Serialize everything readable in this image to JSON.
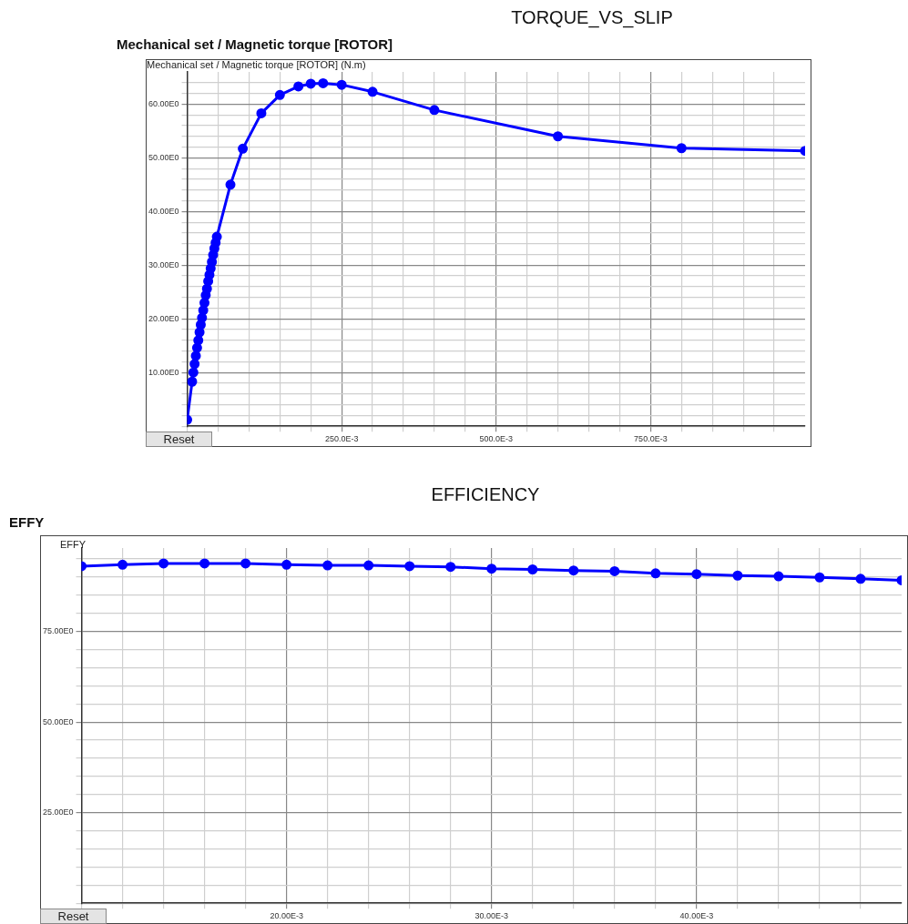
{
  "chart_data": [
    {
      "type": "line",
      "title": "TORQUE_VS_SLIP",
      "ylabel": "Mechanical set / Magnetic torque [ROTOR]",
      "annotations": [
        "Mechanical set / Magnetic torque [ROTOR] (N.m)",
        "Reset"
      ],
      "x": [
        0,
        0.008,
        0.01,
        0.012,
        0.014,
        0.016,
        0.018,
        0.02,
        0.022,
        0.024,
        0.026,
        0.028,
        0.03,
        0.032,
        0.034,
        0.036,
        0.038,
        0.04,
        0.042,
        0.044,
        0.046,
        0.048,
        0.07,
        0.09,
        0.12,
        0.15,
        0.18,
        0.2,
        0.22,
        0.25,
        0.3,
        0.4,
        0.6,
        0.8,
        1.0
      ],
      "series": [
        {
          "color": "#0000ff",
          "values": [
            1.2,
            8.3,
            10,
            11.6,
            13.1,
            14.6,
            16,
            17.5,
            18.9,
            20.2,
            21.6,
            23,
            24.4,
            25.6,
            27,
            28.2,
            29.4,
            30.6,
            31.9,
            33.1,
            34.2,
            35.3,
            45,
            51.7,
            58.3,
            61.7,
            63.3,
            63.8,
            63.9,
            63.6,
            62.3,
            58.9,
            54,
            51.8,
            51.3
          ]
        }
      ],
      "xlim": [
        0,
        1.0
      ],
      "xticks": [
        {
          "value": 0,
          "label": null
        },
        {
          "value": 0.05,
          "label": null
        },
        {
          "value": 0.1,
          "label": null
        },
        {
          "value": 0.15,
          "label": null
        },
        {
          "value": 0.2,
          "label": null
        },
        {
          "value": 0.25,
          "label": "250.0E-3"
        },
        {
          "value": 0.3,
          "label": null
        },
        {
          "value": 0.35,
          "label": null
        },
        {
          "value": 0.4,
          "label": null
        },
        {
          "value": 0.45,
          "label": null
        },
        {
          "value": 0.5,
          "label": "500.0E-3"
        },
        {
          "value": 0.55,
          "label": null
        },
        {
          "value": 0.6,
          "label": null
        },
        {
          "value": 0.65,
          "label": null
        },
        {
          "value": 0.7,
          "label": null
        },
        {
          "value": 0.75,
          "label": "750.0E-3"
        },
        {
          "value": 0.8,
          "label": null
        },
        {
          "value": 0.85,
          "label": null
        },
        {
          "value": 0.9,
          "label": null
        },
        {
          "value": 0.95,
          "label": null
        }
      ],
      "ylim": [
        0,
        66
      ],
      "yticks": [
        {
          "value": 0,
          "label": null
        },
        {
          "value": 2,
          "label": null
        },
        {
          "value": 4,
          "label": null
        },
        {
          "value": 6,
          "label": null
        },
        {
          "value": 8,
          "label": null
        },
        {
          "value": 10,
          "label": "10.00E0"
        },
        {
          "value": 12,
          "label": null
        },
        {
          "value": 14,
          "label": null
        },
        {
          "value": 16,
          "label": null
        },
        {
          "value": 18,
          "label": null
        },
        {
          "value": 20,
          "label": "20.00E0"
        },
        {
          "value": 22,
          "label": null
        },
        {
          "value": 24,
          "label": null
        },
        {
          "value": 26,
          "label": null
        },
        {
          "value": 28,
          "label": null
        },
        {
          "value": 30,
          "label": "30.00E0"
        },
        {
          "value": 32,
          "label": null
        },
        {
          "value": 34,
          "label": null
        },
        {
          "value": 36,
          "label": null
        },
        {
          "value": 38,
          "label": null
        },
        {
          "value": 40,
          "label": "40.00E0"
        },
        {
          "value": 42,
          "label": null
        },
        {
          "value": 44,
          "label": null
        },
        {
          "value": 46,
          "label": null
        },
        {
          "value": 48,
          "label": null
        },
        {
          "value": 50,
          "label": "50.00E0"
        },
        {
          "value": 52,
          "label": null
        },
        {
          "value": 54,
          "label": null
        },
        {
          "value": 56,
          "label": null
        },
        {
          "value": 58,
          "label": null
        },
        {
          "value": 60,
          "label": "60.00E0"
        },
        {
          "value": 62,
          "label": null
        },
        {
          "value": 64,
          "label": null
        }
      ],
      "grid": true,
      "marker": "circle",
      "line_style": "solid",
      "legend": false
    },
    {
      "type": "line",
      "title": "EFFICIENCY",
      "ylabel": "EFFY",
      "annotations": [
        "EFFY",
        "Reset"
      ],
      "x": [
        0.01,
        0.012,
        0.014,
        0.016,
        0.018,
        0.02,
        0.022,
        0.024,
        0.026,
        0.028,
        0.03,
        0.032,
        0.034,
        0.036,
        0.038,
        0.04,
        0.042,
        0.044,
        0.046,
        0.048,
        0.05
      ],
      "series": [
        {
          "color": "#0000ff",
          "values": [
            93.0,
            93.4,
            93.75,
            93.75,
            93.75,
            93.4,
            93.2,
            93.2,
            93.0,
            92.8,
            92.3,
            92.1,
            91.8,
            91.6,
            91.0,
            90.8,
            90.4,
            90.2,
            89.9,
            89.5,
            89.1
          ]
        }
      ],
      "xlim": [
        0.01,
        0.05
      ],
      "xticks": [
        {
          "value": 0.01,
          "label": null
        },
        {
          "value": 0.012,
          "label": null
        },
        {
          "value": 0.014,
          "label": null
        },
        {
          "value": 0.016,
          "label": null
        },
        {
          "value": 0.018,
          "label": null
        },
        {
          "value": 0.02,
          "label": "20.00E-3"
        },
        {
          "value": 0.022,
          "label": null
        },
        {
          "value": 0.024,
          "label": null
        },
        {
          "value": 0.026,
          "label": null
        },
        {
          "value": 0.028,
          "label": null
        },
        {
          "value": 0.03,
          "label": "30.00E-3"
        },
        {
          "value": 0.032,
          "label": null
        },
        {
          "value": 0.034,
          "label": null
        },
        {
          "value": 0.036,
          "label": null
        },
        {
          "value": 0.038,
          "label": null
        },
        {
          "value": 0.04,
          "label": "40.00E-3"
        },
        {
          "value": 0.042,
          "label": null
        },
        {
          "value": 0.044,
          "label": null
        },
        {
          "value": 0.046,
          "label": null
        },
        {
          "value": 0.048,
          "label": null
        }
      ],
      "ylim": [
        0,
        98
      ],
      "yticks": [
        {
          "value": 0,
          "label": null
        },
        {
          "value": 5,
          "label": null
        },
        {
          "value": 10,
          "label": null
        },
        {
          "value": 15,
          "label": null
        },
        {
          "value": 20,
          "label": null
        },
        {
          "value": 25,
          "label": "25.00E0"
        },
        {
          "value": 30,
          "label": null
        },
        {
          "value": 35,
          "label": null
        },
        {
          "value": 40,
          "label": null
        },
        {
          "value": 45,
          "label": null
        },
        {
          "value": 50,
          "label": "50.00E0"
        },
        {
          "value": 55,
          "label": null
        },
        {
          "value": 60,
          "label": null
        },
        {
          "value": 65,
          "label": null
        },
        {
          "value": 70,
          "label": null
        },
        {
          "value": 75,
          "label": "75.00E0"
        },
        {
          "value": 80,
          "label": null
        },
        {
          "value": 85,
          "label": null
        },
        {
          "value": 90,
          "label": null
        },
        {
          "value": 95,
          "label": null
        }
      ],
      "grid": true,
      "marker": "circle",
      "line_style": "solid",
      "legend": false
    }
  ]
}
